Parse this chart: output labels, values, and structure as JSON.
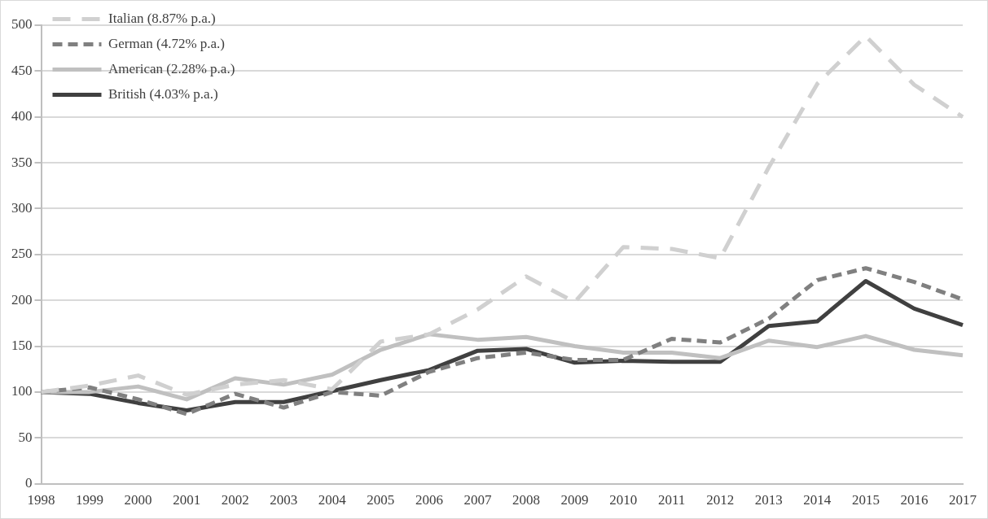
{
  "chart_data": {
    "type": "line",
    "categories": [
      "1998",
      "1999",
      "2000",
      "2001",
      "2002",
      "2003",
      "2004",
      "2005",
      "2006",
      "2007",
      "2008",
      "2009",
      "2010",
      "2011",
      "2012",
      "2013",
      "2014",
      "2015",
      "2016",
      "2017"
    ],
    "series": [
      {
        "name": "Italian (8.87% p.a.)",
        "color": "#d0d0d0",
        "line_style": "dashed",
        "values": [
          100,
          107,
          118,
          97,
          108,
          113,
          103,
          155,
          163,
          190,
          226,
          198,
          258,
          256,
          246,
          345,
          436,
          488,
          435,
          400
        ]
      },
      {
        "name": "German (4.72% p.a.)",
        "color": "#808080",
        "line_style": "dashed",
        "values": [
          100,
          105,
          92,
          76,
          98,
          83,
          100,
          96,
          122,
          137,
          143,
          135,
          135,
          158,
          154,
          180,
          222,
          235,
          220,
          201
        ]
      },
      {
        "name": "American (2.28% p.a.)",
        "color": "#c0c0c0",
        "line_style": "solid",
        "values": [
          100,
          100,
          106,
          92,
          115,
          108,
          119,
          146,
          163,
          157,
          160,
          150,
          143,
          143,
          137,
          156,
          149,
          161,
          146,
          140
        ]
      },
      {
        "name": "British (4.03% p.a.)",
        "color": "#404040",
        "line_style": "solid",
        "values": [
          100,
          98,
          88,
          80,
          89,
          89,
          101,
          113,
          124,
          145,
          147,
          132,
          134,
          133,
          133,
          172,
          177,
          221,
          191,
          173
        ]
      }
    ],
    "ylim": [
      0,
      500
    ],
    "yticks": [
      0,
      50,
      100,
      150,
      200,
      250,
      300,
      350,
      400,
      450,
      500
    ],
    "grid": "y",
    "legend": "top left",
    "marker": "none"
  }
}
